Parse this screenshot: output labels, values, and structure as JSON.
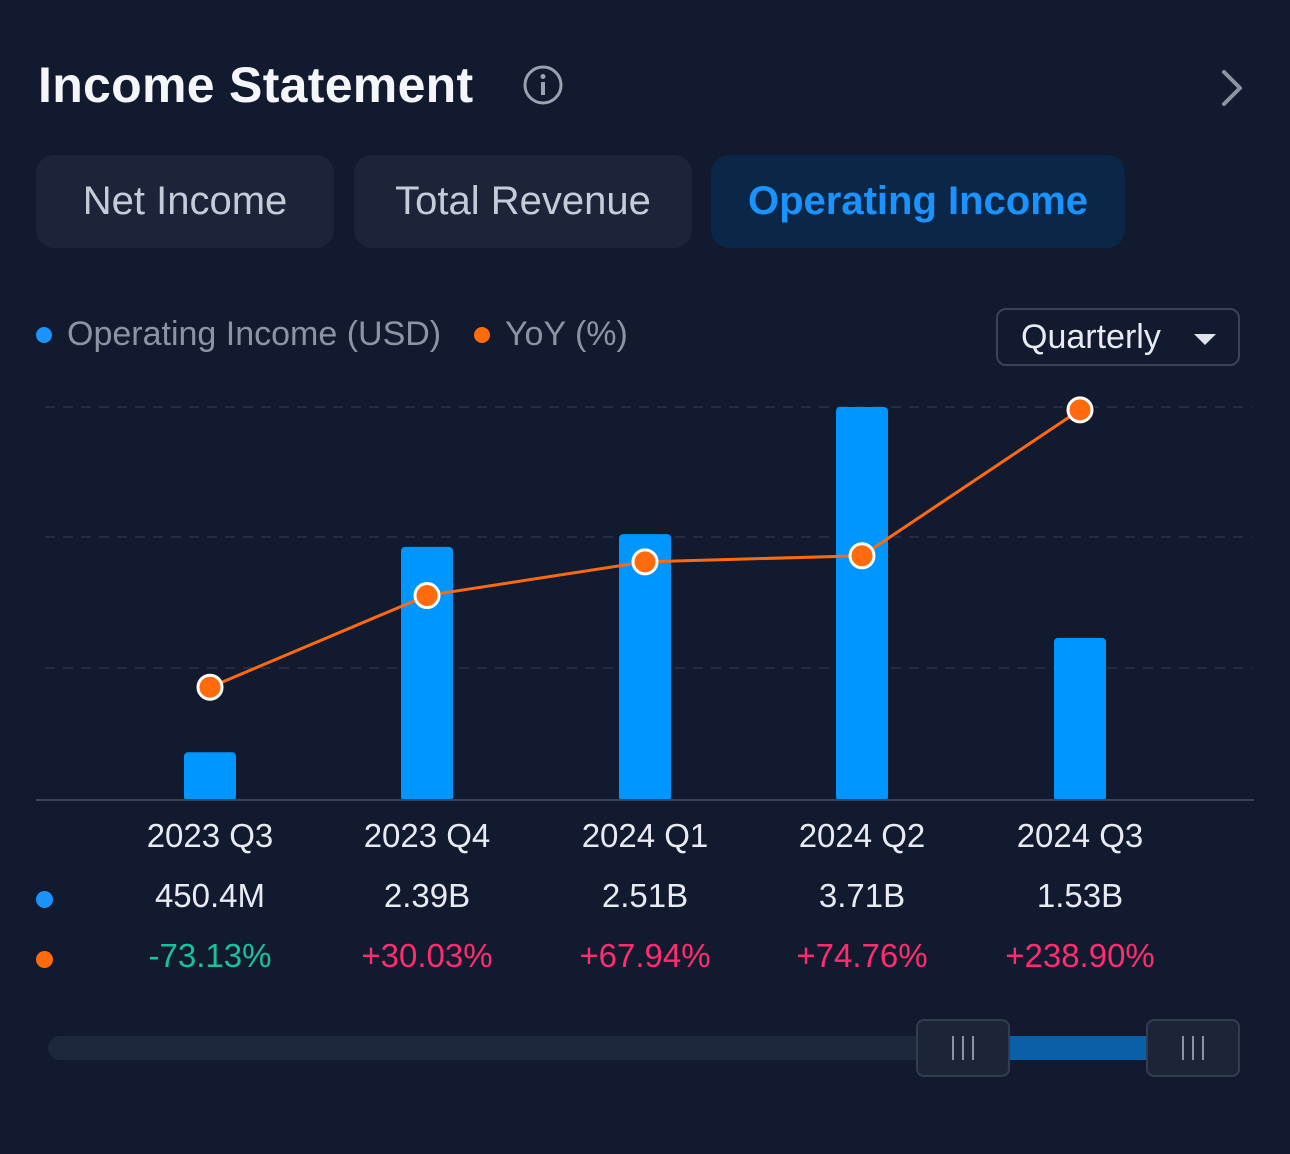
{
  "header": {
    "title": "Income Statement",
    "info_icon": "info-circle-icon",
    "next_icon": "chevron-right-icon"
  },
  "tabs": [
    {
      "label": "Net Income",
      "active": false
    },
    {
      "label": "Total Revenue",
      "active": false
    },
    {
      "label": "Operating Income",
      "active": true
    }
  ],
  "legend": [
    {
      "label": "Operating Income (USD)",
      "color": "#1a93ff"
    },
    {
      "label": "YoY (%)",
      "color": "#ff6a0c"
    }
  ],
  "period_select": {
    "value": "Quarterly"
  },
  "colors": {
    "bar": "#0096ff",
    "line": "#ff6a0c",
    "positive": "#ff2d6f",
    "negative": "#18c29c"
  },
  "chart_data": {
    "type": "bar",
    "categories": [
      "2023 Q3",
      "2023 Q4",
      "2024 Q1",
      "2024 Q2",
      "2024 Q3"
    ],
    "series": [
      {
        "name": "Operating Income (USD)",
        "type": "bar",
        "values": [
          450400000,
          2390000000,
          2510000000,
          3710000000,
          1530000000
        ],
        "labels": [
          "450.4M",
          "2.39B",
          "2.51B",
          "3.71B",
          "1.53B"
        ]
      },
      {
        "name": "YoY (%)",
        "type": "line",
        "values": [
          -73.13,
          30.03,
          67.94,
          74.76,
          238.9
        ],
        "labels": [
          "-73.13%",
          "+30.03%",
          "+67.94%",
          "+74.76%",
          "+238.90%"
        ]
      }
    ]
  },
  "range_slider": {
    "start_fraction": 0.77,
    "end_fraction": 1.0
  }
}
